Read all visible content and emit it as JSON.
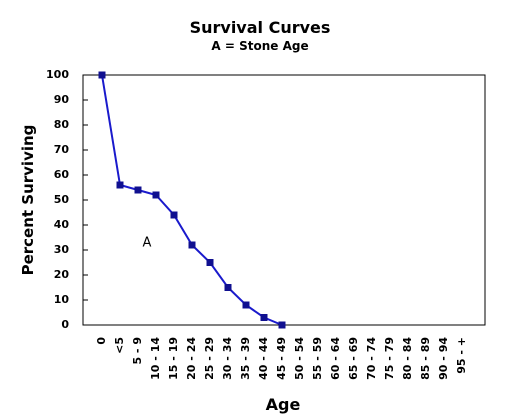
{
  "chart_data": {
    "type": "line",
    "title": "Survival Curves",
    "subtitle": "A = Stone Age",
    "xlabel": "Age",
    "ylabel": "Percent Surviving",
    "categories": [
      "0",
      "<5",
      "5 - 9",
      "10 - 14",
      "15 - 19",
      "20 - 24",
      "25 - 29",
      "30 - 34",
      "35 - 39",
      "40 - 44",
      "45 - 49",
      "50 - 54",
      "55 - 59",
      "60 - 64",
      "65 - 69",
      "70 - 74",
      "75 - 79",
      "80 - 84",
      "85 - 89",
      "90 - 94",
      "95 - +"
    ],
    "series": [
      {
        "name": "A",
        "color": "#1a1acc",
        "values": [
          100,
          56,
          54,
          52,
          44,
          32,
          25,
          15,
          8,
          3,
          0,
          null,
          null,
          null,
          null,
          null,
          null,
          null,
          null,
          null,
          null
        ]
      }
    ],
    "ylim": [
      0,
      100
    ],
    "yticks": [
      0,
      10,
      20,
      30,
      40,
      50,
      60,
      70,
      80,
      90,
      100
    ]
  }
}
